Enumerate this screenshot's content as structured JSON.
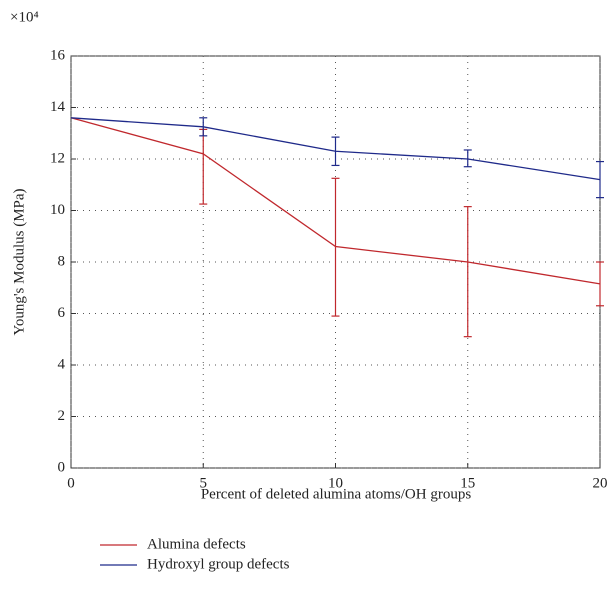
{
  "chart_data": {
    "type": "line",
    "y_multiplier": "×10⁴",
    "xlabel": "Percent of deleted alumina atoms/OH groups",
    "ylabel": "Young's Modulus (MPa)",
    "x": [
      0,
      5,
      10,
      15,
      20
    ],
    "series": [
      {
        "name": "Alumina defects",
        "color": "#c0282d",
        "values": [
          13.6,
          12.2,
          8.6,
          8.0,
          7.15
        ],
        "lower": [
          null,
          10.25,
          5.9,
          5.1,
          6.3
        ],
        "upper": [
          null,
          13.15,
          11.25,
          10.15,
          8.0
        ]
      },
      {
        "name": "Hydroxyl group defects",
        "color": "#1f2a8a",
        "values": [
          13.6,
          13.25,
          12.3,
          12.0,
          11.2
        ],
        "lower": [
          null,
          12.9,
          11.75,
          11.7,
          10.5
        ],
        "upper": [
          null,
          13.6,
          12.85,
          12.35,
          11.9
        ]
      }
    ],
    "xlim": [
      0,
      20
    ],
    "xticks": [
      0,
      5,
      10,
      15,
      20
    ],
    "ylim": [
      0,
      16
    ],
    "yticks": [
      0,
      2,
      4,
      6,
      8,
      10,
      12,
      14,
      16
    ],
    "grid": true
  }
}
